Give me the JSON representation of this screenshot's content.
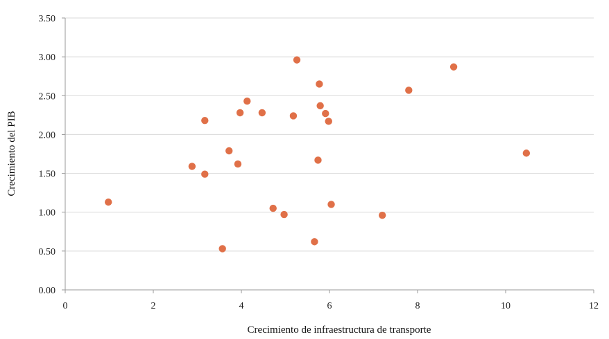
{
  "chart_data": {
    "type": "scatter",
    "title": "",
    "xlabel": "Crecimiento de infraestructura de transporte",
    "ylabel": "Crecimiento del PIB",
    "xlim": [
      0,
      12
    ],
    "ylim": [
      0,
      3.5
    ],
    "x_ticks": [
      0,
      2,
      4,
      6,
      8,
      10,
      12
    ],
    "x_tick_labels": [
      "0",
      "2",
      "4",
      "6",
      "8",
      "10",
      "12"
    ],
    "y_ticks": [
      0,
      0.5,
      1,
      1.5,
      2,
      2.5,
      3,
      3.5
    ],
    "y_tick_labels": [
      "0.00",
      "0.50",
      "1.00",
      "1.50",
      "2.00",
      "2.50",
      "3.00",
      "3.50"
    ],
    "grid": "horizontal",
    "legend": "none",
    "marker_color": "#E07048",
    "series": [
      {
        "points": [
          {
            "x": 0.98,
            "y": 1.13
          },
          {
            "x": 2.88,
            "y": 1.59
          },
          {
            "x": 3.17,
            "y": 2.18
          },
          {
            "x": 3.17,
            "y": 1.49
          },
          {
            "x": 3.57,
            "y": 0.53
          },
          {
            "x": 3.72,
            "y": 1.79
          },
          {
            "x": 3.92,
            "y": 1.62
          },
          {
            "x": 3.97,
            "y": 2.28
          },
          {
            "x": 4.13,
            "y": 2.43
          },
          {
            "x": 4.47,
            "y": 2.28
          },
          {
            "x": 4.72,
            "y": 1.05
          },
          {
            "x": 4.97,
            "y": 0.97
          },
          {
            "x": 5.18,
            "y": 2.24
          },
          {
            "x": 5.26,
            "y": 2.96
          },
          {
            "x": 5.66,
            "y": 0.62
          },
          {
            "x": 5.74,
            "y": 1.67
          },
          {
            "x": 5.77,
            "y": 2.65
          },
          {
            "x": 5.79,
            "y": 2.37
          },
          {
            "x": 5.91,
            "y": 2.27
          },
          {
            "x": 5.98,
            "y": 2.17
          },
          {
            "x": 6.04,
            "y": 1.1
          },
          {
            "x": 7.2,
            "y": 0.96
          },
          {
            "x": 7.8,
            "y": 2.57
          },
          {
            "x": 8.82,
            "y": 2.87
          },
          {
            "x": 10.47,
            "y": 1.76
          }
        ]
      }
    ]
  }
}
